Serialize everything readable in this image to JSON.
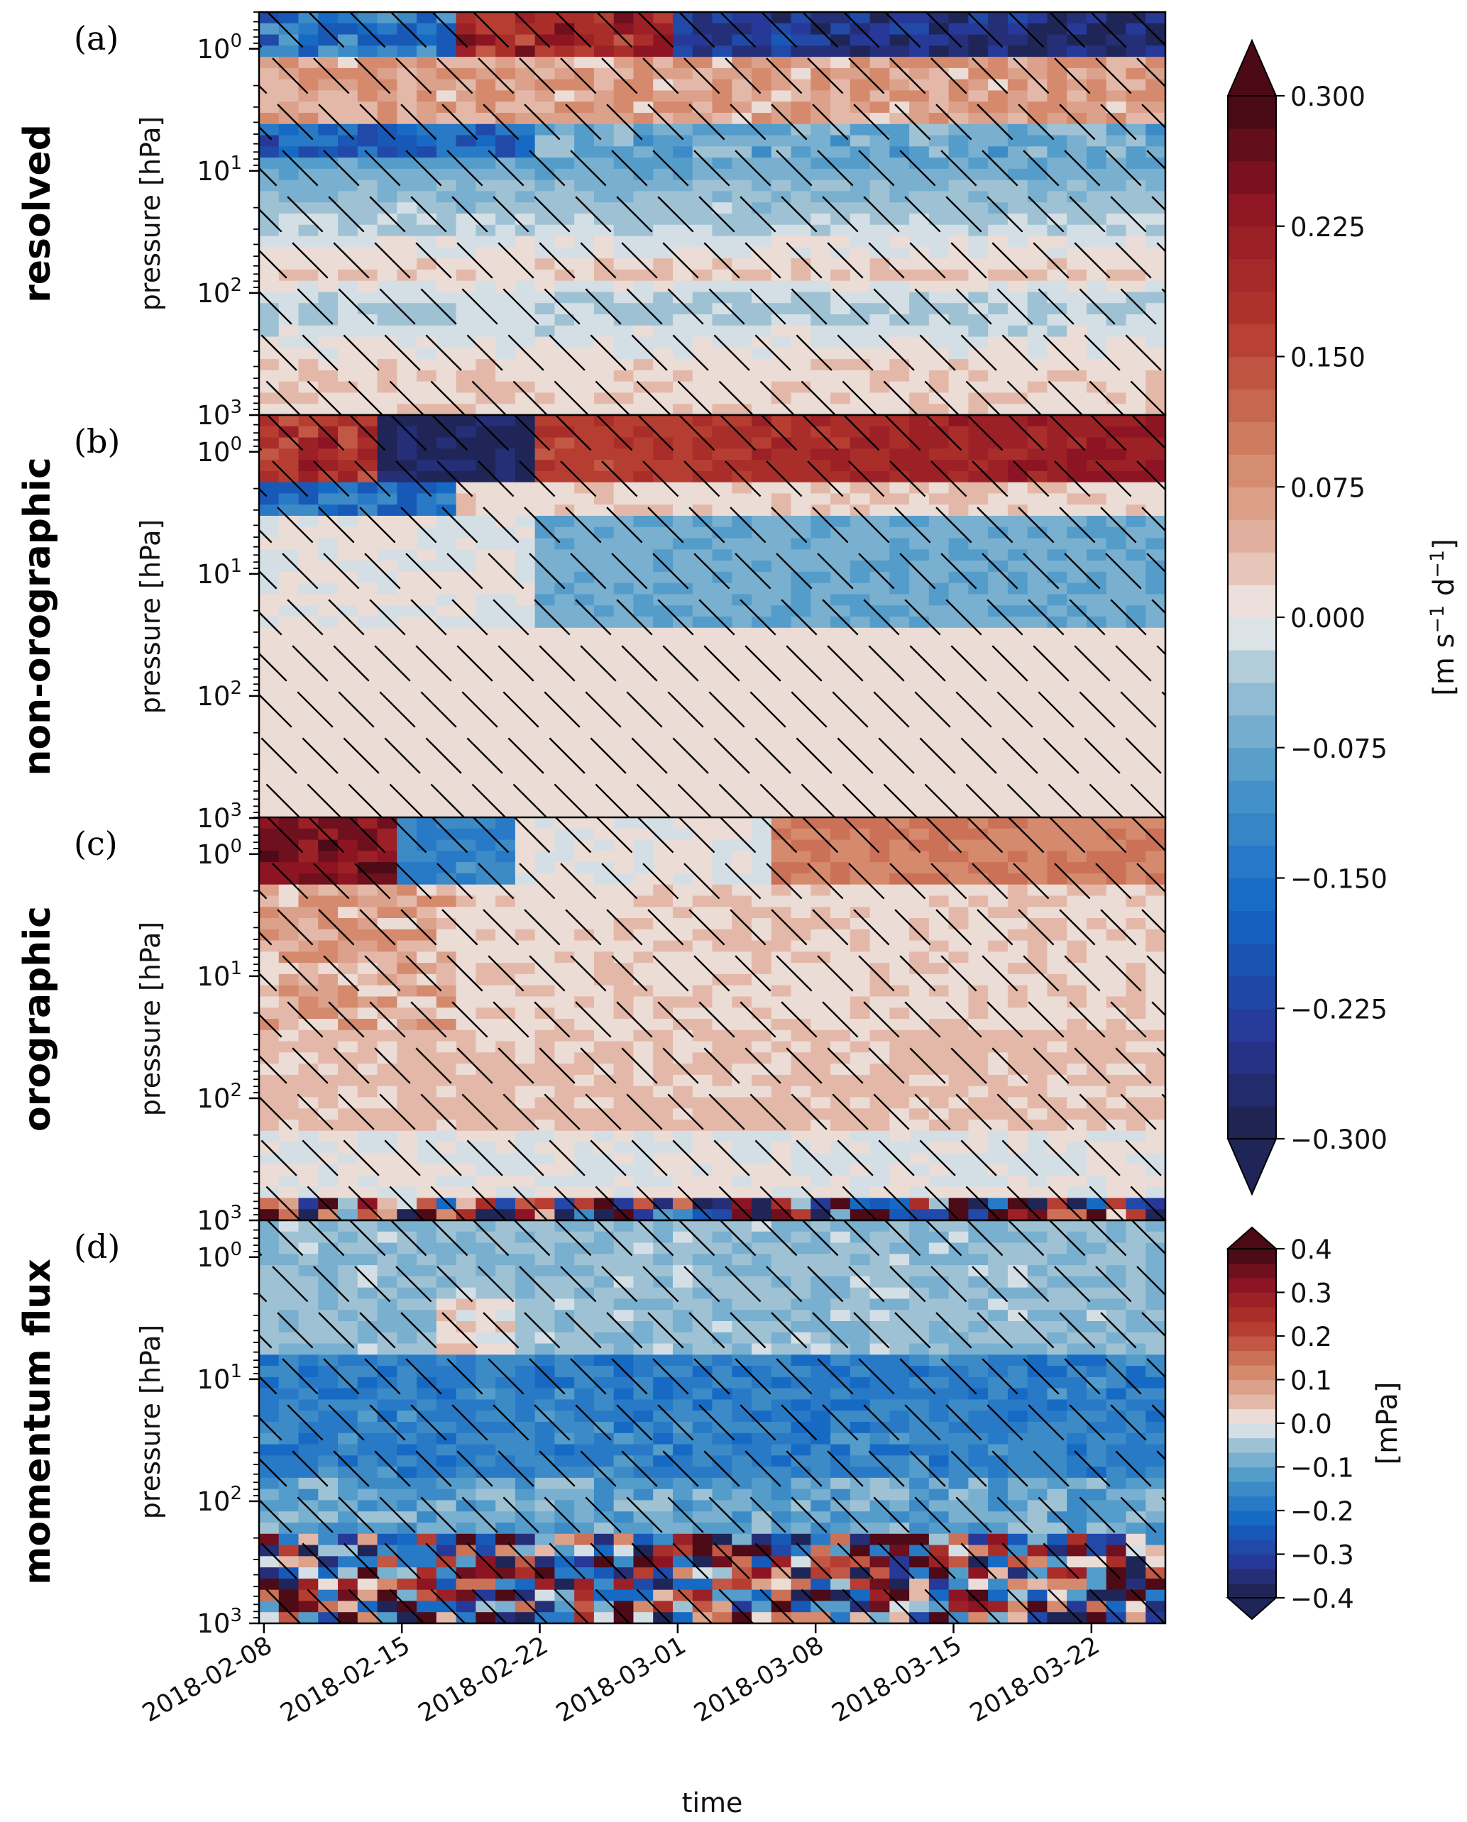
{
  "chart_data": [
    {
      "type": "heatmap",
      "panel_letter": "(a)",
      "row_title": "resolved",
      "ylabel": "pressure [hPa]",
      "yscale": "log",
      "ylim": [
        1000,
        0.5
      ],
      "yticks": [
        {
          "v": 1,
          "mant": "10",
          "exp": "0"
        },
        {
          "v": 10,
          "mant": "10",
          "exp": "1"
        },
        {
          "v": 100,
          "mant": "10",
          "exp": "2"
        },
        {
          "v": 1000,
          "mant": "10",
          "exp": "3"
        }
      ],
      "units": "m s-1 d-1",
      "pattern": "layers",
      "key_values": [
        {
          "p": 0.7,
          "v": -0.22
        },
        {
          "p": 1.5,
          "v": 0.07
        },
        {
          "p": 3,
          "v": 0.12
        },
        {
          "p": 6,
          "v": -0.1
        },
        {
          "p": 12,
          "v": -0.06
        },
        {
          "p": 30,
          "v": -0.02
        },
        {
          "p": 70,
          "v": 0.03
        },
        {
          "p": 120,
          "v": -0.04
        },
        {
          "p": 400,
          "v": 0.02
        }
      ],
      "hatched": "most of the panel (non-significant)"
    },
    {
      "type": "heatmap",
      "panel_letter": "(b)",
      "row_title": "non-orographic",
      "ylabel": "pressure [hPa]",
      "yscale": "log",
      "ylim": [
        1000,
        0.5
      ],
      "yticks": [
        {
          "v": 1,
          "mant": "10",
          "exp": "0"
        },
        {
          "v": 10,
          "mant": "10",
          "exp": "1"
        },
        {
          "v": 100,
          "mant": "10",
          "exp": "2"
        },
        {
          "v": 1000,
          "mant": "10",
          "exp": "3"
        }
      ],
      "units": "m s-1 d-1",
      "pattern": "upper",
      "key_values": [
        {
          "p": 0.8,
          "v": 0.13
        },
        {
          "p": 5,
          "v": -0.06
        },
        {
          "p": 100,
          "v": 0.01
        }
      ],
      "hatched": "most of the panel (non-significant)"
    },
    {
      "type": "heatmap",
      "panel_letter": "(c)",
      "row_title": "orographic",
      "ylabel": "pressure [hPa]",
      "yscale": "log",
      "ylim": [
        1000,
        0.5
      ],
      "yticks": [
        {
          "v": 1,
          "mant": "10",
          "exp": "0"
        },
        {
          "v": 10,
          "mant": "10",
          "exp": "1"
        },
        {
          "v": 100,
          "mant": "10",
          "exp": "2"
        },
        {
          "v": 1000,
          "mant": "10",
          "exp": "3"
        }
      ],
      "units": "m s-1 d-1",
      "pattern": "orographic",
      "key_values": [
        {
          "p": 0.8,
          "v": 0.15
        },
        {
          "p": 30,
          "v": 0.04
        },
        {
          "p": 900,
          "v": 0.3
        }
      ],
      "hatched": "most of the panel (non-significant)"
    },
    {
      "type": "heatmap",
      "panel_letter": "(d)",
      "row_title": "momentum flux",
      "ylabel": "pressure [hPa]",
      "xlabel": "time",
      "yscale": "log",
      "ylim": [
        1000,
        0.5
      ],
      "yticks": [
        {
          "v": 1,
          "mant": "10",
          "exp": "0"
        },
        {
          "v": 10,
          "mant": "10",
          "exp": "1"
        },
        {
          "v": 100,
          "mant": "10",
          "exp": "2"
        },
        {
          "v": 1000,
          "mant": "10",
          "exp": "3"
        }
      ],
      "units": "mPa",
      "pattern": "flux",
      "key_values": [
        {
          "p": 1,
          "v": -0.05
        },
        {
          "p": 20,
          "v": -0.15
        },
        {
          "p": 50,
          "v": -0.22
        },
        {
          "p": 600,
          "v": 0.3
        }
      ],
      "hatched": "lower levels and parts of upper levels"
    }
  ],
  "time_axis": {
    "start": "2018-02-08",
    "end": "2018-03-26",
    "tick_labels": [
      "2018-02-08",
      "2018-02-15",
      "2018-02-22",
      "2018-03-01",
      "2018-03-08",
      "2018-03-15",
      "2018-03-22"
    ],
    "tick_days": [
      0,
      7,
      14,
      21,
      28,
      35,
      42
    ],
    "span_days": 46
  },
  "colorbar_tendency": {
    "label_base": "[m s",
    "sup1": "−1",
    "mid": " d",
    "sup2": "−1",
    "close": "]",
    "ticks": [
      "0.300",
      "0.225",
      "0.150",
      "0.075",
      "0.000",
      "−0.075",
      "−0.150",
      "−0.225",
      "−0.300"
    ],
    "tick_values": [
      0.3,
      0.225,
      0.15,
      0.075,
      0,
      -0.075,
      -0.15,
      -0.225,
      -0.3
    ],
    "vmin": -0.3,
    "vmax": 0.3
  },
  "colorbar_flux": {
    "label": "[mPa]",
    "ticks": [
      "0.4",
      "0.3",
      "0.2",
      "0.1",
      "0.0",
      "−0.1",
      "−0.2",
      "−0.3",
      "−0.4"
    ],
    "tick_values": [
      0.4,
      0.3,
      0.2,
      0.1,
      0,
      -0.1,
      -0.2,
      -0.3,
      -0.4
    ],
    "vmin": -0.4,
    "vmax": 0.4
  },
  "colormap": "balance (blue-white-red)"
}
